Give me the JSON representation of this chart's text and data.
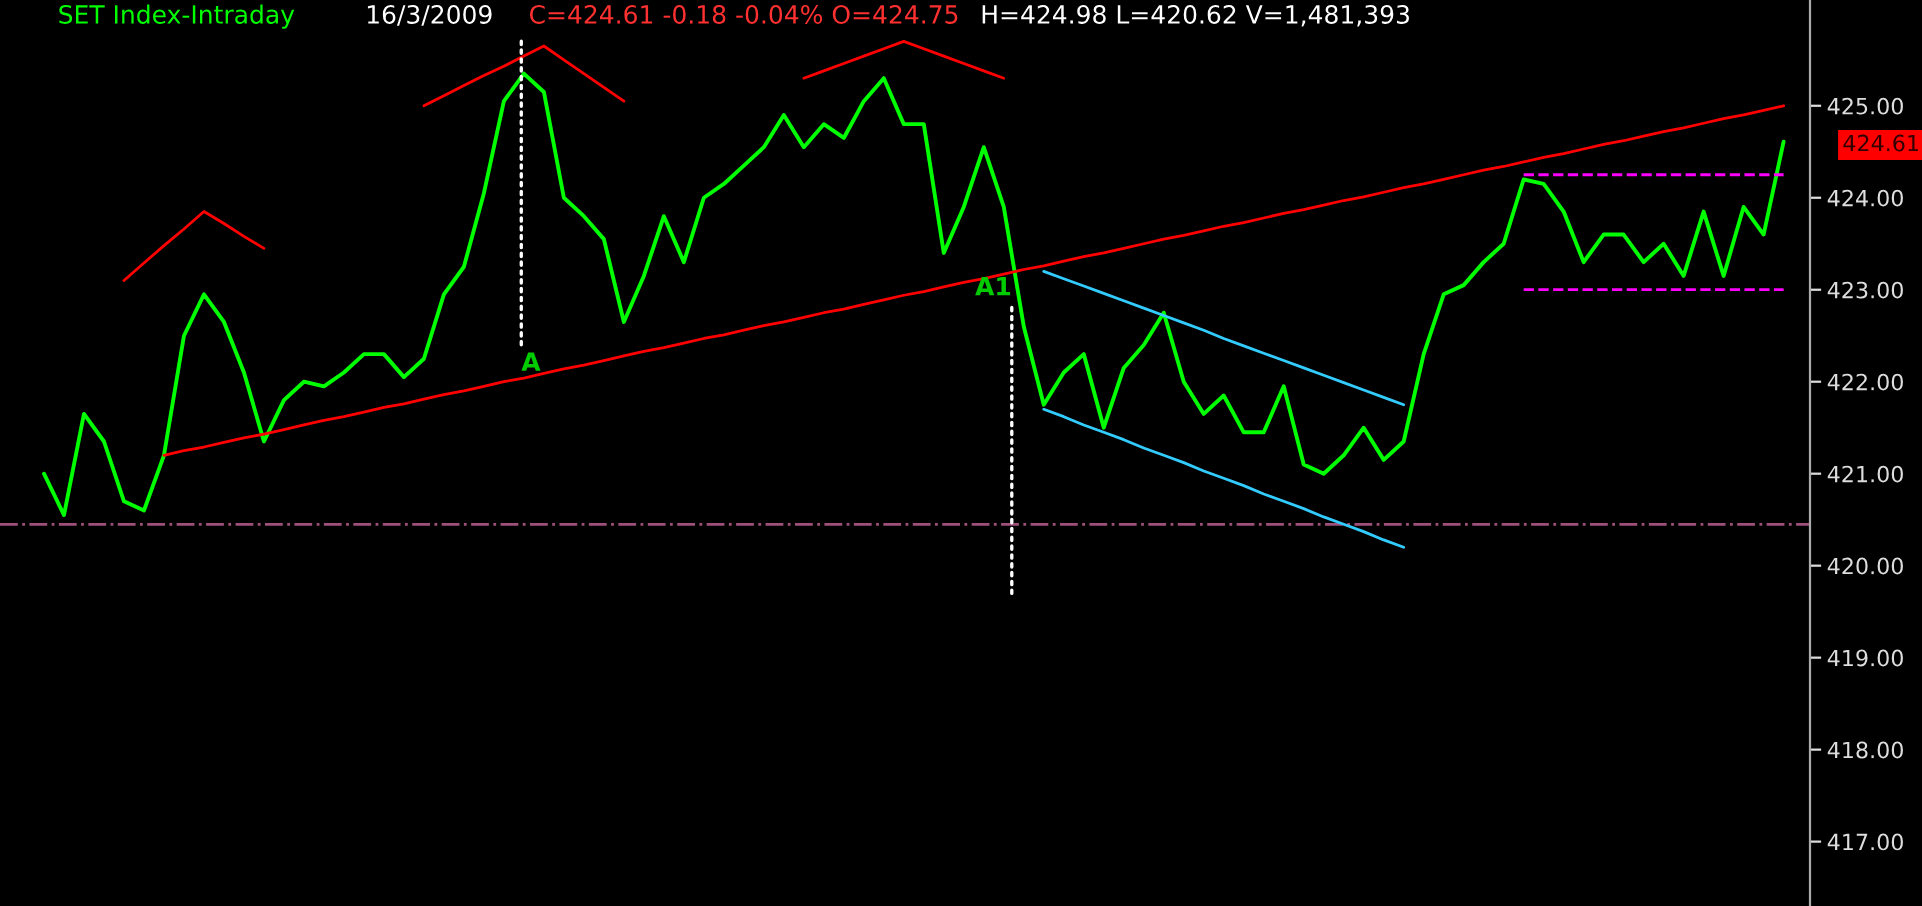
{
  "chart_data": {
    "type": "line",
    "title": "SET Index-Intraday",
    "annotations": [
      "16/3/2009",
      "C=424.61 -0.18 -0.04% O=424.75",
      "H=424.98 L=420.62 V=1,481,393",
      "A",
      "A1",
      "424.61"
    ],
    "categories": [
      null,
      null,
      null,
      null,
      null,
      null,
      null,
      null,
      null,
      null,
      null,
      null,
      null,
      null,
      null,
      null,
      null,
      null,
      null,
      null,
      null,
      null,
      null,
      null,
      null,
      null,
      null,
      null,
      null,
      null,
      null,
      null,
      null,
      null,
      null,
      null,
      null,
      null,
      null,
      null,
      null,
      null,
      null,
      null,
      null,
      null,
      null,
      null,
      null,
      null,
      null,
      null,
      null,
      null,
      null,
      null,
      null,
      null,
      null,
      null,
      null,
      null,
      null,
      null,
      null,
      null,
      null,
      null,
      null,
      null,
      null,
      null,
      null,
      null,
      null,
      null,
      null,
      null,
      null,
      null,
      null,
      null,
      null,
      null,
      null,
      null,
      null,
      null
    ],
    "series": [
      {
        "color": "#00ff00",
        "values": [
          421.0,
          420.55,
          421.65,
          421.35,
          420.7,
          420.6,
          421.2,
          422.5,
          422.95,
          422.65,
          422.1,
          421.35,
          421.8,
          422.0,
          421.95,
          422.1,
          422.3,
          422.3,
          422.05,
          422.25,
          422.95,
          423.25,
          424.05,
          425.05,
          425.35,
          425.15,
          424.0,
          423.8,
          423.55,
          422.65,
          423.15,
          423.8,
          423.3,
          424.0,
          424.15,
          424.35,
          424.55,
          424.9,
          424.55,
          424.8,
          424.65,
          425.05,
          425.3,
          424.8,
          424.8,
          423.4,
          423.9,
          424.55,
          423.9,
          422.6,
          421.75,
          422.1,
          422.3,
          421.5,
          422.15,
          422.4,
          422.75,
          422.0,
          421.65,
          421.85,
          421.45,
          421.45,
          421.95,
          421.1,
          421.0,
          421.2,
          421.5,
          421.15,
          421.35,
          422.3,
          422.95,
          423.05,
          423.3,
          423.5,
          424.2,
          424.15,
          423.85,
          423.3,
          423.6,
          423.6,
          423.3,
          423.5,
          423.15,
          423.85,
          423.15,
          423.9,
          423.6,
          424.61
        ]
      },
      {
        "color": "#ff0000",
        "values": [
          null,
          null,
          null,
          null,
          null,
          null,
          421.2,
          421.25,
          421.29,
          421.34,
          421.39,
          421.43,
          421.48,
          421.53,
          421.58,
          421.62,
          421.67,
          421.72,
          421.76,
          421.81,
          421.86,
          421.9,
          421.95,
          422.0,
          422.04,
          422.09,
          422.14,
          422.18,
          422.23,
          422.28,
          422.33,
          422.37,
          422.42,
          422.47,
          422.51,
          422.56,
          422.61,
          422.65,
          422.7,
          422.75,
          422.79,
          422.84,
          422.89,
          422.94,
          422.98,
          423.03,
          423.08,
          423.12,
          423.17,
          423.22,
          423.26,
          423.31,
          423.36,
          423.4,
          423.45,
          423.5,
          423.55,
          423.59,
          423.64,
          423.69,
          423.73,
          423.78,
          423.83,
          423.87,
          423.92,
          423.97,
          424.01,
          424.06,
          424.11,
          424.15,
          424.2,
          424.25,
          424.3,
          424.34,
          424.39,
          424.44,
          424.48,
          424.53,
          424.58,
          424.62,
          424.67,
          424.72,
          424.76,
          424.81,
          424.86,
          424.9,
          424.95,
          425.0
        ]
      },
      {
        "color": "#ff0000",
        "values": [
          null,
          null,
          null,
          null,
          423.1,
          423.29,
          423.48,
          423.66,
          423.85,
          423.72,
          423.58,
          423.45,
          null,
          null,
          null,
          null,
          null,
          null,
          null,
          null,
          null,
          null,
          null,
          null,
          null,
          null,
          null,
          null,
          null,
          null,
          null,
          null,
          null,
          null,
          null,
          null,
          null,
          null,
          null,
          null,
          null,
          null,
          null,
          null,
          null,
          null,
          null,
          null,
          null,
          null,
          null,
          null,
          null,
          null,
          null,
          null,
          null,
          null,
          null,
          null,
          null,
          null,
          null,
          null,
          null,
          null,
          null,
          null,
          null,
          null,
          null,
          null,
          null,
          null,
          null,
          null,
          null,
          null,
          null,
          null,
          null,
          null,
          null,
          null,
          null,
          null,
          null,
          null
        ]
      },
      {
        "color": "#ff0000",
        "values": [
          null,
          null,
          null,
          null,
          null,
          null,
          null,
          null,
          null,
          null,
          null,
          null,
          null,
          null,
          null,
          null,
          null,
          null,
          null,
          425.0,
          425.11,
          425.22,
          425.33,
          425.43,
          425.54,
          425.65,
          425.5,
          425.35,
          425.2,
          425.05,
          null,
          null,
          null,
          null,
          null,
          null,
          null,
          null,
          null,
          null,
          null,
          null,
          null,
          null,
          null,
          null,
          null,
          null,
          null,
          null,
          null,
          null,
          null,
          null,
          null,
          null,
          null,
          null,
          null,
          null,
          null,
          null,
          null,
          null,
          null,
          null,
          null,
          null,
          null,
          null,
          null,
          null,
          null,
          null,
          null,
          null,
          null,
          null,
          null,
          null,
          null,
          null,
          null,
          null,
          null,
          null,
          null,
          null
        ]
      },
      {
        "color": "#ff0000",
        "values": [
          null,
          null,
          null,
          null,
          null,
          null,
          null,
          null,
          null,
          null,
          null,
          null,
          null,
          null,
          null,
          null,
          null,
          null,
          null,
          null,
          null,
          null,
          null,
          null,
          null,
          null,
          null,
          null,
          null,
          null,
          null,
          null,
          null,
          null,
          null,
          null,
          null,
          null,
          425.3,
          425.38,
          425.46,
          425.54,
          425.62,
          425.7,
          425.62,
          425.54,
          425.46,
          425.38,
          425.3,
          null,
          null,
          null,
          null,
          null,
          null,
          null,
          null,
          null,
          null,
          null,
          null,
          null,
          null,
          null,
          null,
          null,
          null,
          null,
          null,
          null,
          null,
          null,
          null,
          null,
          null,
          null,
          null,
          null,
          null,
          null,
          null,
          null,
          null,
          null,
          null,
          null,
          null,
          null
        ]
      },
      {
        "color": "#33ccff",
        "values": [
          null,
          null,
          null,
          null,
          null,
          null,
          null,
          null,
          null,
          null,
          null,
          null,
          null,
          null,
          null,
          null,
          null,
          null,
          null,
          null,
          null,
          null,
          null,
          null,
          null,
          null,
          null,
          null,
          null,
          null,
          null,
          null,
          null,
          null,
          null,
          null,
          null,
          null,
          null,
          null,
          null,
          null,
          null,
          null,
          null,
          null,
          null,
          null,
          null,
          null,
          423.2,
          423.12,
          423.04,
          422.96,
          422.88,
          422.8,
          422.72,
          422.64,
          422.56,
          422.47,
          422.39,
          422.31,
          422.23,
          422.15,
          422.07,
          421.99,
          421.91,
          421.83,
          421.75,
          null,
          null,
          null,
          null,
          null,
          null,
          null,
          null,
          null,
          null,
          null,
          null,
          null,
          null,
          null,
          null,
          null,
          null,
          null
        ]
      },
      {
        "color": "#33ccff",
        "values": [
          null,
          null,
          null,
          null,
          null,
          null,
          null,
          null,
          null,
          null,
          null,
          null,
          null,
          null,
          null,
          null,
          null,
          null,
          null,
          null,
          null,
          null,
          null,
          null,
          null,
          null,
          null,
          null,
          null,
          null,
          null,
          null,
          null,
          null,
          null,
          null,
          null,
          null,
          null,
          null,
          null,
          null,
          null,
          null,
          null,
          null,
          null,
          null,
          null,
          null,
          421.7,
          421.62,
          421.53,
          421.45,
          421.37,
          421.28,
          421.2,
          421.12,
          421.03,
          420.95,
          420.87,
          420.78,
          420.7,
          420.62,
          420.53,
          420.45,
          420.37,
          420.28,
          420.2,
          null,
          null,
          null,
          null,
          null,
          null,
          null,
          null,
          null,
          null,
          null,
          null,
          null,
          null,
          null,
          null,
          null,
          null,
          null
        ]
      },
      {
        "color": "#ff00ff",
        "line_style": "dashed",
        "values": [
          null,
          null,
          null,
          null,
          null,
          null,
          null,
          null,
          null,
          null,
          null,
          null,
          null,
          null,
          null,
          null,
          null,
          null,
          null,
          null,
          null,
          null,
          null,
          null,
          null,
          null,
          null,
          null,
          null,
          null,
          null,
          null,
          null,
          null,
          null,
          null,
          null,
          null,
          null,
          null,
          null,
          null,
          null,
          null,
          null,
          null,
          null,
          null,
          null,
          null,
          null,
          null,
          null,
          null,
          null,
          null,
          null,
          null,
          null,
          null,
          null,
          null,
          null,
          null,
          null,
          null,
          null,
          null,
          null,
          null,
          null,
          null,
          null,
          null,
          424.25,
          424.25,
          424.25,
          424.25,
          424.25,
          424.25,
          424.25,
          424.25,
          424.25,
          424.25,
          424.25,
          424.25,
          424.25,
          424.25
        ]
      },
      {
        "color": "#ff00ff",
        "line_style": "dashed",
        "values": [
          null,
          null,
          null,
          null,
          null,
          null,
          null,
          null,
          null,
          null,
          null,
          null,
          null,
          null,
          null,
          null,
          null,
          null,
          null,
          null,
          null,
          null,
          null,
          null,
          null,
          null,
          null,
          null,
          null,
          null,
          null,
          null,
          null,
          null,
          null,
          null,
          null,
          null,
          null,
          null,
          null,
          null,
          null,
          null,
          null,
          null,
          null,
          null,
          null,
          null,
          null,
          null,
          null,
          null,
          null,
          null,
          null,
          null,
          null,
          null,
          null,
          null,
          null,
          null,
          null,
          null,
          null,
          null,
          null,
          null,
          null,
          null,
          null,
          null,
          423.0,
          423.0,
          423.0,
          423.0,
          423.0,
          423.0,
          423.0,
          423.0,
          423.0,
          423.0,
          423.0,
          423.0,
          423.0,
          423.0
        ]
      }
    ],
    "ref_lines": [
      {
        "axis": "y",
        "value": 420.45,
        "color": "#9e4f7a",
        "line_style": "dashdot"
      }
    ],
    "ylim": [
      416.3,
      426.15
    ],
    "yticks": [
      {
        "value": 417,
        "label": "417.00"
      },
      {
        "value": 418,
        "label": "418.00"
      },
      {
        "value": 419,
        "label": "419.00"
      },
      {
        "value": 420,
        "label": "420.00"
      },
      {
        "value": 421,
        "label": "421.00"
      },
      {
        "value": 422,
        "label": "422.00"
      },
      {
        "value": 423,
        "label": "423.00"
      },
      {
        "value": 424,
        "label": "424.00"
      },
      {
        "value": 425,
        "label": "425.00"
      }
    ],
    "tick_labels": "y",
    "grid": false,
    "legend": false,
    "marker": "none"
  }
}
